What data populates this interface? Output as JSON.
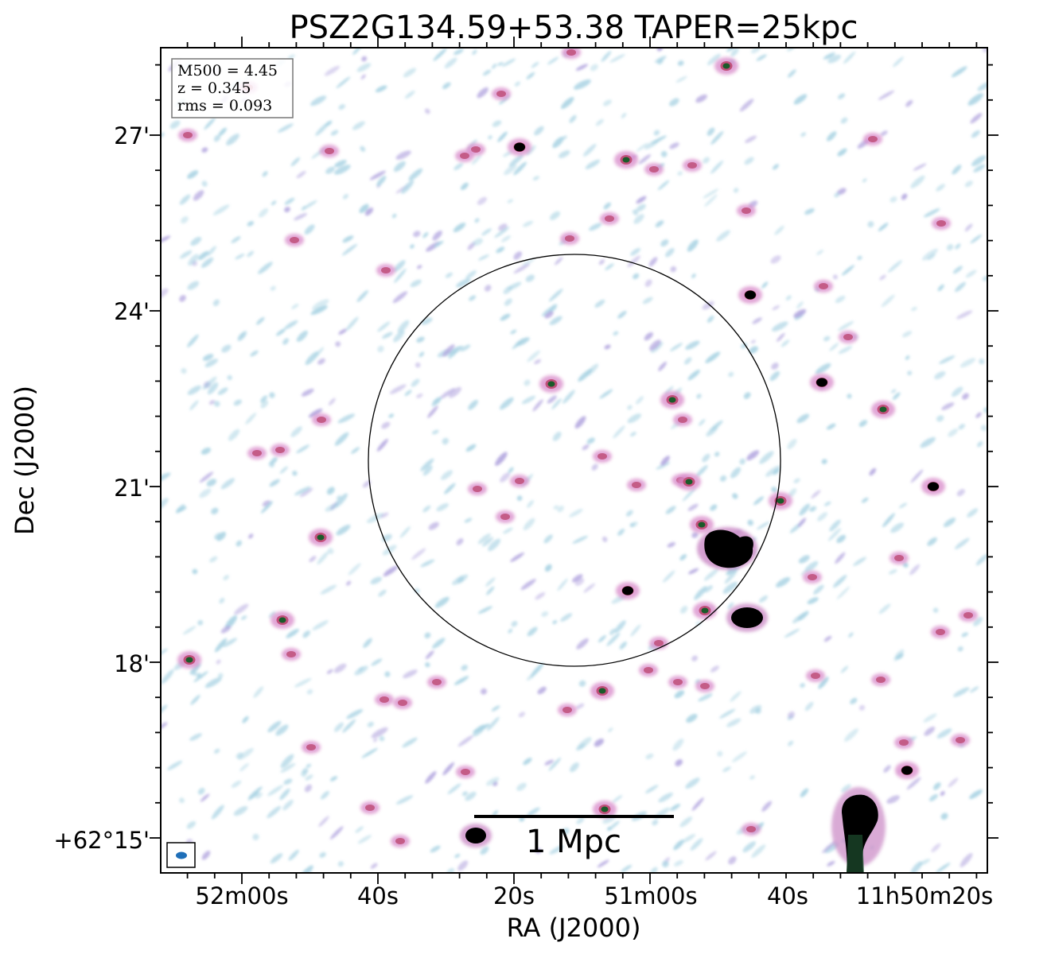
{
  "figure": {
    "title": "PSZ2G134.59+53.38 TAPER=25kpc",
    "x_axis_label": "RA (J2000)",
    "y_axis_label": "Dec (J2000)",
    "x_ticks": [
      "52m00s",
      "40s",
      "20s",
      "51m00s",
      "40s",
      "11h50m20s"
    ],
    "y_ticks": [
      "27'",
      "24'",
      "21'",
      "18'",
      "+62°15'"
    ],
    "info_box": {
      "m500": "M500 = 4.45",
      "redshift": "z = 0.345",
      "rms": "rms = 0.093"
    },
    "scale_bar_label": "1 Mpc",
    "colors": {
      "noise_light": "#a9d3e3",
      "noise_mid": "#b3a6df",
      "source_halo": "#d889c9",
      "source_core": "#c0507a",
      "source_peak": "#1a5a2a",
      "bright": "#000000",
      "beam": "#1f6fb8"
    }
  }
}
